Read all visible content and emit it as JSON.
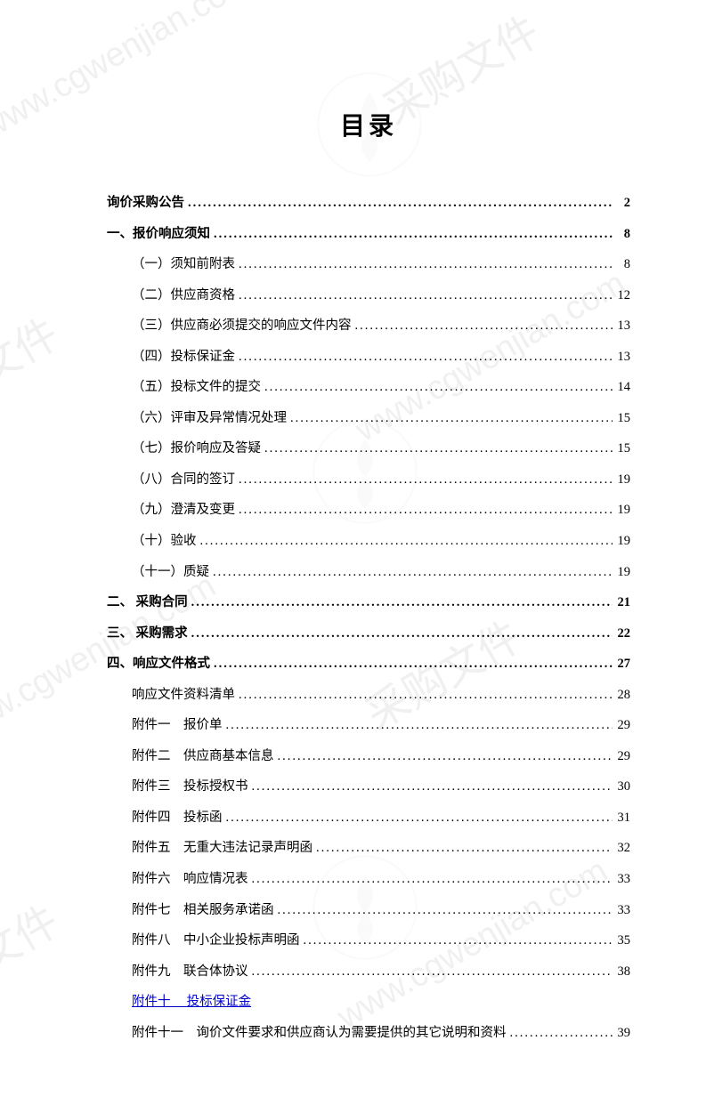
{
  "title": "目录",
  "watermark_text": "www.cgwenjian.com",
  "watermark_chinese": "采购文件",
  "toc": [
    {
      "label": "询价采购公告",
      "page": "2",
      "bold": true,
      "indented": false
    },
    {
      "label": "一、报价响应须知",
      "page": "8",
      "bold": true,
      "indented": false
    },
    {
      "label": "（一）须知前附表",
      "page": "8",
      "bold": false,
      "indented": true
    },
    {
      "label": "（二）供应商资格",
      "page": "12",
      "bold": false,
      "indented": true
    },
    {
      "label": "（三）供应商必须提交的响应文件内容",
      "page": "13",
      "bold": false,
      "indented": true
    },
    {
      "label": "（四）投标保证金",
      "page": "13",
      "bold": false,
      "indented": true
    },
    {
      "label": "（五）投标文件的提交",
      "page": "14",
      "bold": false,
      "indented": true
    },
    {
      "label": "（六）评审及异常情况处理",
      "page": "15",
      "bold": false,
      "indented": true
    },
    {
      "label": "（七）报价响应及答疑",
      "page": "15",
      "bold": false,
      "indented": true
    },
    {
      "label": "（八）合同的签订",
      "page": "19",
      "bold": false,
      "indented": true
    },
    {
      "label": "（九）澄清及变更",
      "page": "19",
      "bold": false,
      "indented": true
    },
    {
      "label": "（十）验收",
      "page": "19",
      "bold": false,
      "indented": true
    },
    {
      "label": "（十一）质疑",
      "page": "19",
      "bold": false,
      "indented": true
    },
    {
      "label": "二、 采购合同",
      "page": "21",
      "bold": true,
      "indented": false
    },
    {
      "label": "三、 采购需求",
      "page": "22",
      "bold": true,
      "indented": false
    },
    {
      "label": "四、响应文件格式",
      "page": "27",
      "bold": true,
      "indented": false
    },
    {
      "label": "响应文件资料清单",
      "page": "28",
      "bold": false,
      "indented": true
    },
    {
      "label": "附件一　报价单",
      "page": "29",
      "bold": false,
      "indented": true
    },
    {
      "label": "附件二　供应商基本信息",
      "page": "29",
      "bold": false,
      "indented": true
    },
    {
      "label": "附件三　投标授权书",
      "page": "30",
      "bold": false,
      "indented": true
    },
    {
      "label": "附件四　投标函",
      "page": "31",
      "bold": false,
      "indented": true
    },
    {
      "label": "附件五　无重大违法记录声明函",
      "page": "32",
      "bold": false,
      "indented": true
    },
    {
      "label": "附件六　响应情况表",
      "page": "33",
      "bold": false,
      "indented": true
    },
    {
      "label": "附件七　相关服务承诺函",
      "page": "33",
      "bold": false,
      "indented": true
    },
    {
      "label": "附件八　中小企业投标声明函",
      "page": "35",
      "bold": false,
      "indented": true
    },
    {
      "label": "附件九　联合体协议",
      "page": "38",
      "bold": false,
      "indented": true
    },
    {
      "label": "附件十　 投标保证金",
      "page": "",
      "bold": false,
      "indented": true,
      "link": true
    },
    {
      "label": "附件十一　询价文件要求和供应商认为需要提供的其它说明和资料",
      "page": "39",
      "bold": false,
      "indented": true
    }
  ],
  "colors": {
    "text": "#000000",
    "link": "#0000cc",
    "watermark": "#f0f0f0",
    "background": "#ffffff"
  },
  "fonts": {
    "title_size": 28,
    "body_size": 14.5
  }
}
